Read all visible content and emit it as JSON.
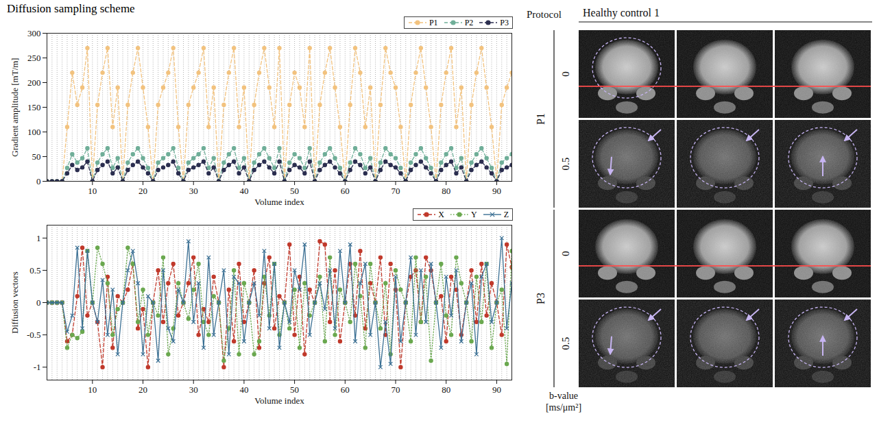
{
  "chart_data": [
    {
      "type": "line",
      "title": "Diffusion sampling scheme",
      "x_label": "Volume index",
      "y_label": "Gradient amplitude [mT/m]",
      "x": [
        1,
        2,
        3,
        4,
        5,
        6,
        7,
        8,
        9,
        10,
        11,
        12,
        13,
        14,
        15,
        16,
        17,
        18,
        19,
        20,
        21,
        22,
        23,
        24,
        25,
        26,
        27,
        28,
        29,
        30,
        31,
        32,
        33,
        34,
        35,
        36,
        37,
        38,
        39,
        40,
        41,
        42,
        43,
        44,
        45,
        46,
        47,
        48,
        49,
        50,
        51,
        52,
        53,
        54,
        55,
        56,
        57,
        58,
        59,
        60,
        61,
        62,
        63,
        64,
        65,
        66,
        67,
        68,
        69,
        70,
        71,
        72,
        73,
        74,
        75,
        76,
        77,
        78,
        79,
        80,
        81,
        82,
        83,
        84,
        85,
        86,
        87,
        88,
        89,
        90,
        91,
        92,
        93
      ],
      "xlim": [
        1,
        93
      ],
      "xticks": [
        10,
        20,
        30,
        40,
        50,
        60,
        70,
        80,
        90
      ],
      "ylim": [
        0,
        300
      ],
      "yticks": [
        0,
        50,
        100,
        150,
        200,
        250,
        300
      ],
      "grid": true,
      "legend": "top-right",
      "series": [
        {
          "name": "P1",
          "color": "#f2c27e",
          "line_style": "dashed",
          "marker": "circle",
          "values": [
            0,
            0,
            0,
            0,
            110,
            220,
            155,
            190,
            270,
            0,
            155,
            220,
            270,
            110,
            190,
            0,
            155,
            220,
            270,
            190,
            110,
            0,
            155,
            190,
            220,
            270,
            110,
            0,
            155,
            190,
            220,
            270,
            110,
            190,
            0,
            155,
            220,
            270,
            110,
            190,
            0,
            155,
            220,
            270,
            190,
            110,
            270,
            0,
            155,
            220,
            190,
            110,
            270,
            0,
            155,
            220,
            270,
            190,
            110,
            0,
            155,
            270,
            220,
            110,
            190,
            0,
            155,
            270,
            220,
            190,
            110,
            0,
            155,
            220,
            270,
            190,
            110,
            0,
            155,
            220,
            270,
            110,
            190,
            0,
            155,
            220,
            270,
            190,
            110,
            0,
            155,
            190,
            220
          ]
        },
        {
          "name": "P2",
          "color": "#6fae98",
          "line_style": "dashed",
          "marker": "circle",
          "values": [
            0,
            0,
            0,
            0,
            27,
            55,
            38,
            47,
            67,
            0,
            38,
            55,
            67,
            27,
            47,
            0,
            38,
            55,
            67,
            47,
            27,
            0,
            38,
            47,
            55,
            67,
            27,
            0,
            38,
            47,
            55,
            67,
            27,
            47,
            0,
            38,
            55,
            67,
            27,
            47,
            0,
            38,
            55,
            67,
            47,
            27,
            67,
            0,
            38,
            55,
            47,
            27,
            67,
            0,
            38,
            55,
            67,
            47,
            27,
            0,
            38,
            67,
            55,
            27,
            47,
            0,
            38,
            67,
            55,
            47,
            27,
            0,
            38,
            55,
            67,
            47,
            27,
            0,
            38,
            55,
            67,
            27,
            47,
            0,
            38,
            55,
            67,
            47,
            27,
            0,
            38,
            47,
            55
          ]
        },
        {
          "name": "P3",
          "color": "#2b2e4f",
          "line_style": "dashed",
          "marker": "circle",
          "values": [
            0,
            0,
            0,
            0,
            16,
            33,
            23,
            28,
            40,
            0,
            23,
            33,
            40,
            16,
            28,
            0,
            23,
            33,
            40,
            28,
            16,
            0,
            23,
            28,
            33,
            40,
            16,
            0,
            23,
            28,
            33,
            40,
            16,
            28,
            0,
            23,
            33,
            40,
            16,
            28,
            0,
            23,
            33,
            40,
            28,
            16,
            40,
            0,
            23,
            33,
            28,
            16,
            40,
            0,
            23,
            33,
            40,
            28,
            16,
            0,
            23,
            40,
            33,
            16,
            28,
            0,
            23,
            40,
            33,
            28,
            16,
            0,
            23,
            33,
            40,
            28,
            16,
            0,
            23,
            33,
            40,
            16,
            28,
            0,
            23,
            33,
            40,
            28,
            16,
            0,
            23,
            28,
            33
          ]
        }
      ]
    },
    {
      "type": "line",
      "x_label": "Volume index",
      "y_label": "Diffusion vectors",
      "x": [
        1,
        2,
        3,
        4,
        5,
        6,
        7,
        8,
        9,
        10,
        11,
        12,
        13,
        14,
        15,
        16,
        17,
        18,
        19,
        20,
        21,
        22,
        23,
        24,
        25,
        26,
        27,
        28,
        29,
        30,
        31,
        32,
        33,
        34,
        35,
        36,
        37,
        38,
        39,
        40,
        41,
        42,
        43,
        44,
        45,
        46,
        47,
        48,
        49,
        50,
        51,
        52,
        53,
        54,
        55,
        56,
        57,
        58,
        59,
        60,
        61,
        62,
        63,
        64,
        65,
        66,
        67,
        68,
        69,
        70,
        71,
        72,
        73,
        74,
        75,
        76,
        77,
        78,
        79,
        80,
        81,
        82,
        83,
        84,
        85,
        86,
        87,
        88,
        89,
        90,
        91,
        92,
        93
      ],
      "xlim": [
        1,
        93
      ],
      "xticks": [
        10,
        20,
        30,
        40,
        50,
        60,
        70,
        80,
        90
      ],
      "ylim": [
        -1.2,
        1.2
      ],
      "yticks": [
        -1,
        -0.5,
        0,
        0.5,
        1
      ],
      "grid": true,
      "legend": "top-right",
      "series": [
        {
          "name": "X",
          "color": "#c0392b",
          "line_style": "dashed",
          "marker": "circle",
          "values": [
            0,
            0,
            0,
            0,
            -0.6,
            -0.5,
            0.1,
            0.85,
            -0.2,
            0,
            -0.3,
            -1,
            0.4,
            -0.7,
            0.1,
            0,
            0.2,
            0.6,
            -0.4,
            -0.1,
            -1,
            0,
            0.5,
            -0.3,
            0.3,
            0.6,
            -0.2,
            0,
            0.3,
            0.7,
            -0.5,
            -0.1,
            -0.3,
            0.4,
            0,
            -1,
            0.2,
            -0.6,
            0.6,
            -0.3,
            0,
            0.5,
            -0.7,
            0.3,
            0.7,
            -0.4,
            0.1,
            0,
            0.9,
            -0.5,
            0.4,
            -0.8,
            0.2,
            0,
            0.95,
            0.9,
            -0.3,
            0.5,
            -0.6,
            0,
            0.6,
            -0.2,
            0.8,
            -0.4,
            0.3,
            0,
            0.7,
            -0.5,
            0.6,
            0.2,
            -1,
            0,
            0.4,
            0.5,
            -0.3,
            0.7,
            0.5,
            0,
            0.1,
            -0.6,
            0.4,
            0.2,
            -0.5,
            0,
            0.5,
            -0.3,
            0.6,
            -0.2,
            0.3,
            0,
            -0.5,
            0.9,
            0.55
          ]
        },
        {
          "name": "Y",
          "color": "#6aa84f",
          "line_style": "dotted",
          "marker": "circle",
          "values": [
            0,
            0,
            0,
            0,
            -0.7,
            -0.5,
            -0.55,
            -0.45,
            0.8,
            0,
            0.85,
            0.6,
            0.3,
            -0.5,
            -0.1,
            0,
            0.85,
            0.6,
            -0.3,
            0.2,
            -0.5,
            0,
            -0.2,
            0.7,
            -0.8,
            -0.4,
            0.3,
            0,
            -0.25,
            0.2,
            0.6,
            -0.3,
            -0.5,
            0.1,
            0,
            -0.9,
            -0.4,
            0.5,
            -0.8,
            0.3,
            0,
            -0.8,
            -0.6,
            0.4,
            -0.2,
            0.6,
            -0.5,
            0,
            -0.4,
            0.2,
            -0.7,
            0.3,
            -0.2,
            0,
            0.4,
            -0.6,
            0.7,
            -0.5,
            0.2,
            0,
            -0.3,
            0.6,
            0.1,
            -0.7,
            0.6,
            0,
            -0.4,
            0.3,
            -0.8,
            0.5,
            0.2,
            0,
            -0.6,
            0.7,
            -0.3,
            0.4,
            -0.9,
            0,
            0.6,
            -0.2,
            -0.5,
            0.7,
            0.3,
            0,
            -0.6,
            0.4,
            -0.3,
            0.6,
            -0.7,
            0,
            0.2,
            -0.95,
            0.8
          ]
        },
        {
          "name": "Z",
          "color": "#3a6f93",
          "line_style": "solid",
          "marker": "x",
          "values": [
            0,
            0,
            0,
            0,
            -0.45,
            -0.2,
            0.85,
            -0.4,
            0.8,
            0,
            -0.3,
            0.35,
            -0.5,
            0.2,
            -0.8,
            0,
            0.5,
            0.8,
            0.3,
            -0.8,
            0.1,
            0,
            -0.9,
            0.5,
            -0.4,
            -0.6,
            0.2,
            0,
            0.95,
            -0.3,
            0.3,
            -0.7,
            0.7,
            -0.5,
            0,
            0.5,
            -0.8,
            0.4,
            0.3,
            -0.6,
            0,
            0.3,
            -0.2,
            0.8,
            -0.4,
            0.6,
            -0.7,
            0,
            -0.3,
            0.5,
            0.2,
            0.9,
            -0.5,
            0,
            0.3,
            -0.1,
            0.5,
            -0.4,
            0.8,
            0,
            0.9,
            -0.6,
            0.3,
            0.6,
            -0.5,
            0,
            -1,
            -0.3,
            -0.95,
            0.4,
            -0.6,
            0,
            0.7,
            -0.5,
            0.5,
            -0.3,
            0.6,
            0,
            -0.7,
            0.4,
            -0.2,
            0.5,
            -0.6,
            0,
            0.3,
            -0.8,
            0.4,
            0.6,
            -0.3,
            0,
            1,
            -0.4,
            0.3
          ]
        }
      ]
    }
  ],
  "image_panel": {
    "title": "Healthy control 1",
    "header": "Protocol",
    "groups": [
      {
        "name": "P1",
        "b_values": [
          0,
          0.5
        ]
      },
      {
        "name": "P3",
        "b_values": [
          0,
          0.5
        ]
      }
    ],
    "axis_label": [
      "b-value",
      "[ms/μm²]"
    ]
  }
}
